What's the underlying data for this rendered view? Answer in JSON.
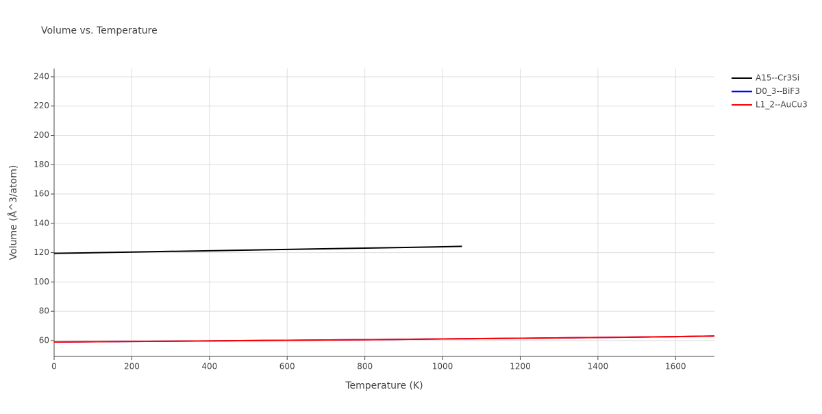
{
  "chart_data": {
    "type": "line",
    "title": "Volume vs. Temperature",
    "x_label": "Temperature (K)",
    "y_label": "Volume (Å^3/atom)",
    "xlim": [
      0,
      1700
    ],
    "xticks": [
      0,
      200,
      400,
      600,
      800,
      1000,
      1200,
      1400,
      1600
    ],
    "ylim": [
      49.2,
      245.6
    ],
    "yticks": [
      60,
      80,
      100,
      120,
      140,
      160,
      180,
      200,
      220,
      240
    ],
    "grid": true,
    "legend": "right",
    "series": [
      {
        "name": "A15--Cr3Si",
        "color": "#000000",
        "x": [
          0,
          200,
          400,
          600,
          800,
          1000,
          1050
        ],
        "values": [
          119.5,
          120.4,
          121.3,
          122.2,
          123.1,
          124.0,
          124.3
        ]
      },
      {
        "name": "D0_3--BiF3",
        "color": "#0000ff",
        "x": [
          0,
          200,
          400,
          600,
          800,
          1000,
          1200,
          1400,
          1600,
          1700
        ],
        "values": [
          59.0,
          59.4,
          59.8,
          60.2,
          60.6,
          61.1,
          61.6,
          62.1,
          62.7,
          63.1
        ]
      },
      {
        "name": "L1_2--AuCu3",
        "color": "#ff0000",
        "x": [
          0,
          200,
          400,
          600,
          800,
          1000,
          1200,
          1400,
          1600,
          1700
        ],
        "values": [
          59.0,
          59.4,
          59.8,
          60.2,
          60.6,
          61.1,
          61.6,
          62.1,
          62.7,
          63.1
        ]
      }
    ]
  }
}
